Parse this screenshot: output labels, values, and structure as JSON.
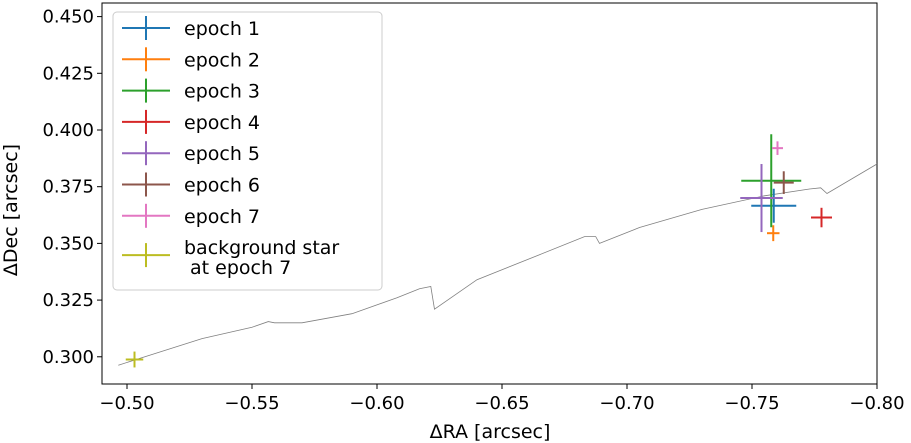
{
  "chart_data": {
    "type": "scatter",
    "title": "",
    "xlabel": "ΔRA [arcsec]",
    "ylabel": "ΔDec [arcsec]",
    "xlim": [
      -0.49,
      -0.8
    ],
    "ylim": [
      0.288,
      0.456
    ],
    "x_ticks": [
      -0.5,
      -0.55,
      -0.6,
      -0.65,
      -0.7,
      -0.75,
      -0.8
    ],
    "x_tick_labels": [
      "−0.50",
      "−0.55",
      "−0.60",
      "−0.65",
      "−0.70",
      "−0.75",
      "−0.80"
    ],
    "y_ticks": [
      0.3,
      0.325,
      0.35,
      0.375,
      0.4,
      0.425,
      0.45
    ],
    "y_tick_labels": [
      "0.300",
      "0.325",
      "0.350",
      "0.375",
      "0.400",
      "0.425",
      "0.450"
    ],
    "grid": false,
    "legend_position": "top-left",
    "series": [
      {
        "name": "epoch 1",
        "color": "#1f77b4",
        "x": -0.7587,
        "y": 0.3666,
        "xerr": 0.009,
        "yerr": 0.0075
      },
      {
        "name": "epoch 2",
        "color": "#ff7f0e",
        "x": -0.7585,
        "y": 0.3545,
        "xerr": 0.0025,
        "yerr": 0.0035
      },
      {
        "name": "epoch 3",
        "color": "#2ca02c",
        "x": -0.7577,
        "y": 0.3776,
        "xerr": 0.012,
        "yerr": 0.0205
      },
      {
        "name": "epoch 4",
        "color": "#d62728",
        "x": -0.7778,
        "y": 0.3614,
        "xerr": 0.0042,
        "yerr": 0.0043
      },
      {
        "name": "epoch 5",
        "color": "#9467bd",
        "x": -0.7538,
        "y": 0.37,
        "xerr": 0.0085,
        "yerr": 0.015
      },
      {
        "name": "epoch 6",
        "color": "#8c564b",
        "x": -0.7627,
        "y": 0.3768,
        "xerr": 0.004,
        "yerr": 0.005
      },
      {
        "name": "epoch 7",
        "color": "#e377c2",
        "x": -0.7602,
        "y": 0.392,
        "xerr": 0.0022,
        "yerr": 0.003
      },
      {
        "name": "background star\n at epoch 7",
        "color": "#bcbd22",
        "x": -0.503,
        "y": 0.2988,
        "xerr": 0.0035,
        "yerr": 0.0035
      }
    ],
    "track": {
      "color": "#808080",
      "x": [
        -0.4965,
        -0.51,
        -0.53,
        -0.55,
        -0.5565,
        -0.559,
        -0.57,
        -0.59,
        -0.608,
        -0.617,
        -0.6215,
        -0.623,
        -0.64,
        -0.665,
        -0.683,
        -0.6875,
        -0.689,
        -0.705,
        -0.73,
        -0.755,
        -0.773,
        -0.7775,
        -0.78,
        -0.8
      ],
      "y": [
        0.2963,
        0.301,
        0.308,
        0.313,
        0.3155,
        0.315,
        0.315,
        0.319,
        0.326,
        0.33,
        0.331,
        0.321,
        0.334,
        0.345,
        0.353,
        0.353,
        0.35,
        0.357,
        0.365,
        0.371,
        0.374,
        0.3745,
        0.372,
        0.385
      ]
    }
  }
}
